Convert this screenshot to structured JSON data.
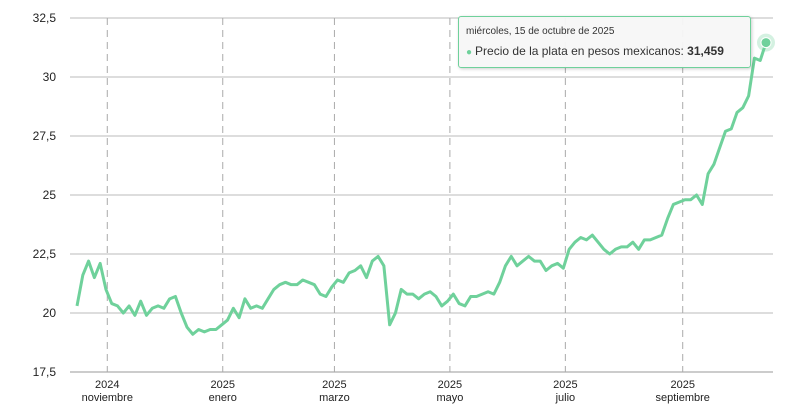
{
  "chart_data": {
    "type": "line",
    "title": "",
    "xlabel": "",
    "ylabel": "",
    "ylim": [
      17.5,
      32.5
    ],
    "yticks": [
      "17,5",
      "20",
      "22,5",
      "25",
      "27,5",
      "30",
      "32,5"
    ],
    "ytick_values": [
      17.5,
      20,
      22.5,
      25,
      27.5,
      30,
      32.5
    ],
    "x_range_days": [
      0,
      364
    ],
    "x_start": "2024-10-16",
    "x_end": "2025-10-15",
    "xticks": [
      {
        "day": 16,
        "year": "2024",
        "month": "noviembre"
      },
      {
        "day": 77,
        "year": "2025",
        "month": "enero"
      },
      {
        "day": 136,
        "year": "2025",
        "month": "marzo"
      },
      {
        "day": 197,
        "year": "2025",
        "month": "mayo"
      },
      {
        "day": 258,
        "year": "2025",
        "month": "julio"
      },
      {
        "day": 320,
        "year": "2025",
        "month": "septiembre"
      }
    ],
    "series": [
      {
        "name": "Precio de la plata en pesos mexicanos",
        "color": "#6fd19b",
        "values": [
          20.3,
          21.6,
          22.2,
          21.5,
          22.1,
          21.0,
          20.4,
          20.3,
          20.0,
          20.3,
          19.9,
          20.5,
          19.9,
          20.2,
          20.3,
          20.2,
          20.6,
          20.7,
          20.0,
          19.4,
          19.1,
          19.3,
          19.2,
          19.3,
          19.3,
          19.5,
          19.7,
          20.2,
          19.8,
          20.6,
          20.2,
          20.3,
          20.2,
          20.6,
          21.0,
          21.2,
          21.3,
          21.2,
          21.2,
          21.4,
          21.3,
          21.2,
          20.8,
          20.7,
          21.1,
          21.4,
          21.3,
          21.7,
          21.8,
          22.0,
          21.5,
          22.2,
          22.4,
          22.0,
          19.5,
          20.0,
          21.0,
          20.8,
          20.8,
          20.6,
          20.8,
          20.9,
          20.7,
          20.3,
          20.5,
          20.8,
          20.4,
          20.3,
          20.7,
          20.7,
          20.8,
          20.9,
          20.8,
          21.3,
          22.0,
          22.4,
          22.0,
          22.2,
          22.4,
          22.2,
          22.2,
          21.8,
          22.0,
          22.1,
          21.9,
          22.7,
          23.0,
          23.2,
          23.1,
          23.3,
          23.0,
          22.7,
          22.5,
          22.7,
          22.8,
          22.8,
          23.0,
          22.7,
          23.1,
          23.1,
          23.2,
          23.3,
          24.0,
          24.6,
          24.7,
          24.8,
          24.8,
          25.0,
          24.6,
          25.9,
          26.3,
          27.0,
          27.7,
          27.8,
          28.5,
          28.7,
          29.2,
          30.8,
          30.7,
          31.459
        ]
      }
    ]
  },
  "tooltip": {
    "date": "miércoles, 15 de octubre de 2025",
    "series_label": "Precio de la plata en pesos mexicanos: ",
    "value": "31,459"
  }
}
